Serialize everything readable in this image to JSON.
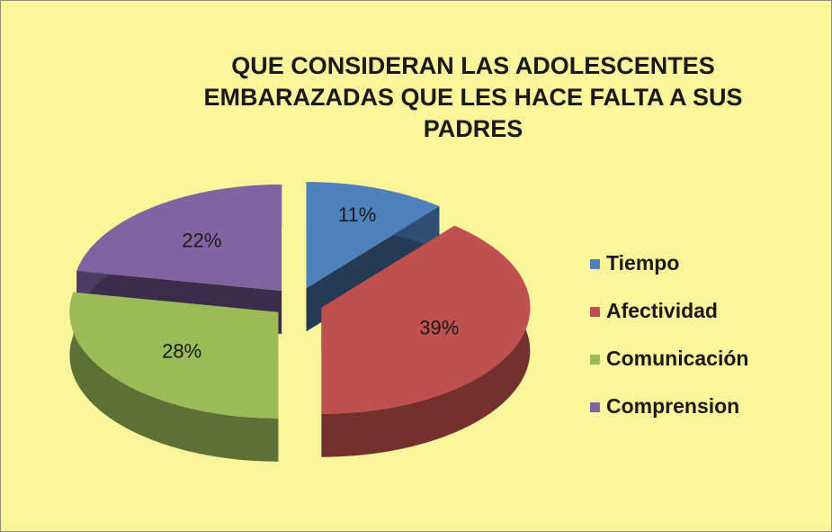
{
  "chart_data": {
    "type": "pie",
    "title": "QUE CONSIDERAN LAS ADOLESCENTES EMBARAZADAS QUE LES HACE FALTA A SUS PADRES",
    "categories": [
      "Tiempo",
      "Afectividad",
      "Comunicación",
      "Comprension"
    ],
    "values": [
      11,
      39,
      28,
      22
    ],
    "value_labels": [
      "11%",
      "39%",
      "28%",
      "22%"
    ],
    "colors": [
      "#4f81bd",
      "#c0504d",
      "#9bbb59",
      "#8064a2"
    ],
    "legend": "right"
  }
}
